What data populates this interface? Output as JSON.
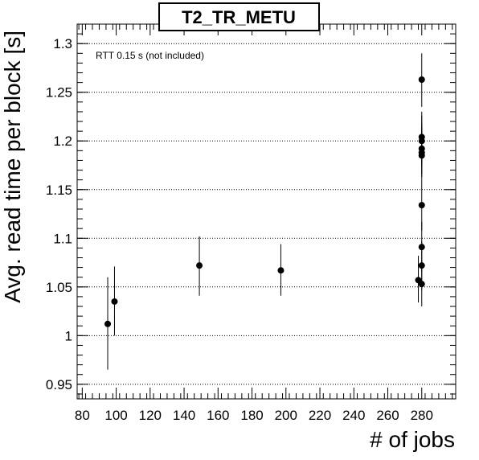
{
  "chart_data": {
    "type": "scatter",
    "title": "T2_TR_METU",
    "xlabel": "# of jobs",
    "ylabel": "Avg. read time per block [s]",
    "annotation": "RTT 0.15 s (not included)",
    "xlim": [
      77,
      300
    ],
    "ylim": [
      0.935,
      1.32
    ],
    "xticks": [
      80,
      100,
      120,
      140,
      160,
      180,
      200,
      220,
      240,
      260,
      280
    ],
    "xtick_labels": [
      "80",
      "100",
      "120",
      "140",
      "160",
      "180",
      "200",
      "220",
      "240",
      "260",
      "280"
    ],
    "yticks": [
      0.95,
      1.0,
      1.05,
      1.1,
      1.15,
      1.2,
      1.25,
      1.3
    ],
    "ytick_labels": [
      "0.95",
      "1",
      "1.05",
      "1.1",
      "1.15",
      "1.2",
      "1.25",
      "1.3"
    ],
    "grid": "horizontal-dotted",
    "points": [
      {
        "x": 95,
        "y": 1.012,
        "ylow": 0.965,
        "yhigh": 1.06
      },
      {
        "x": 99,
        "y": 1.035,
        "ylow": 1.0,
        "yhigh": 1.071
      },
      {
        "x": 149,
        "y": 1.072,
        "ylow": 1.041,
        "yhigh": 1.102
      },
      {
        "x": 197,
        "y": 1.067,
        "ylow": 1.041,
        "yhigh": 1.094
      },
      {
        "x": 278,
        "y": 1.057,
        "ylow": 1.034,
        "yhigh": 1.082
      },
      {
        "x": 280,
        "y": 1.263,
        "ylow": 1.235,
        "yhigh": 1.29
      },
      {
        "x": 280,
        "y": 1.204,
        "ylow": 1.179,
        "yhigh": 1.23
      },
      {
        "x": 280,
        "y": 1.2,
        "ylow": 1.175,
        "yhigh": 1.226
      },
      {
        "x": 280,
        "y": 1.192,
        "ylow": 1.167,
        "yhigh": 1.218
      },
      {
        "x": 280,
        "y": 1.188,
        "ylow": 1.163,
        "yhigh": 1.214
      },
      {
        "x": 280,
        "y": 1.185,
        "ylow": 1.16,
        "yhigh": 1.21
      },
      {
        "x": 280,
        "y": 1.134,
        "ylow": 1.108,
        "yhigh": 1.16
      },
      {
        "x": 280,
        "y": 1.091,
        "ylow": 1.066,
        "yhigh": 1.117
      },
      {
        "x": 280,
        "y": 1.072,
        "ylow": 1.047,
        "yhigh": 1.097
      },
      {
        "x": 280,
        "y": 1.053,
        "ylow": 1.03,
        "yhigh": 1.078
      }
    ]
  }
}
